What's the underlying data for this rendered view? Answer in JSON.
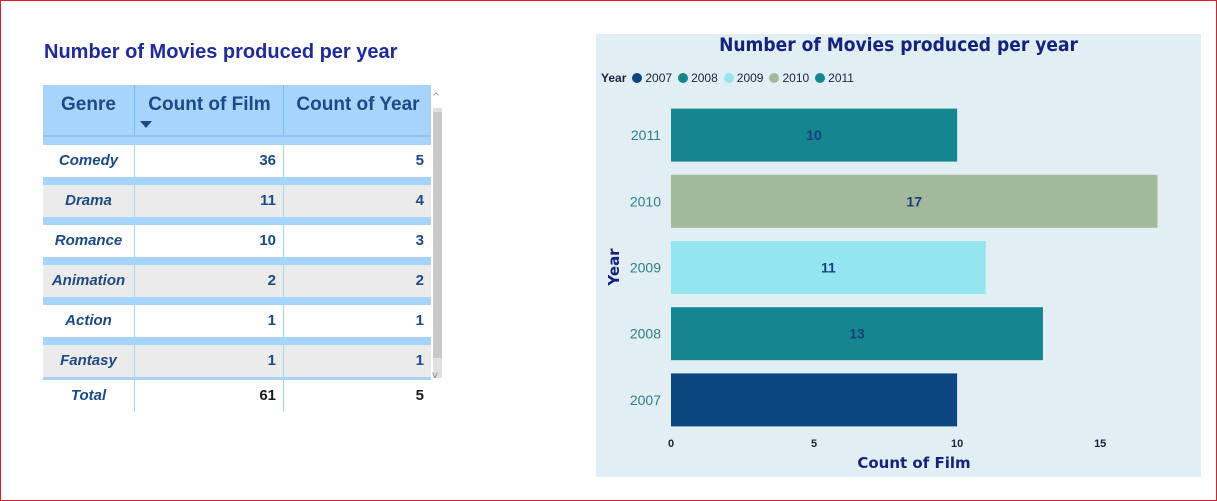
{
  "table": {
    "title": "Number of Movies produced per year",
    "headers": [
      "Genre",
      "Count of Film",
      "Count of Year"
    ],
    "rows": [
      {
        "genre": "Comedy",
        "count_film": "36",
        "count_year": "5"
      },
      {
        "genre": "Drama",
        "count_film": "11",
        "count_year": "4"
      },
      {
        "genre": "Romance",
        "count_film": "10",
        "count_year": "3"
      },
      {
        "genre": "Animation",
        "count_film": "2",
        "count_year": "2"
      },
      {
        "genre": "Action",
        "count_film": "1",
        "count_year": "1"
      },
      {
        "genre": "Fantasy",
        "count_film": "1",
        "count_year": "1"
      }
    ],
    "total": {
      "label": "Total",
      "count_film": "61",
      "count_year": "5"
    },
    "scroll_up": "^",
    "scroll_down": "v"
  },
  "chart_data": {
    "type": "bar",
    "orientation": "horizontal",
    "title": "Number of Movies produced per year",
    "xlabel": "Count of Film",
    "ylabel": "Year",
    "legend_title": "Year",
    "legend_position": "top-left",
    "categories": [
      "2011",
      "2010",
      "2009",
      "2008",
      "2007"
    ],
    "values": [
      10,
      17,
      11,
      13,
      10
    ],
    "data_labels": [
      "10",
      "17",
      "11",
      "13",
      ""
    ],
    "bar_colors": [
      "#13868f",
      "#a2b99b",
      "#93e6ef",
      "#13868f",
      "#0b4680"
    ],
    "legend": [
      {
        "label": "2007",
        "color": "#0b4680"
      },
      {
        "label": "2008",
        "color": "#13868f"
      },
      {
        "label": "2009",
        "color": "#93e6ef"
      },
      {
        "label": "2010",
        "color": "#a2b99b"
      },
      {
        "label": "2011",
        "color": "#13868f"
      }
    ],
    "x_ticks": [
      "0",
      "5",
      "10",
      "15"
    ],
    "xlim": [
      0,
      17.3
    ],
    "grid": false
  },
  "colors": {
    "table_header_bg": "#a6d4fb",
    "table_text": "#1b4a86",
    "chart_bg": "#e1eef3",
    "title_color": "#1f2a9e",
    "frame_border": "#d9202a"
  }
}
